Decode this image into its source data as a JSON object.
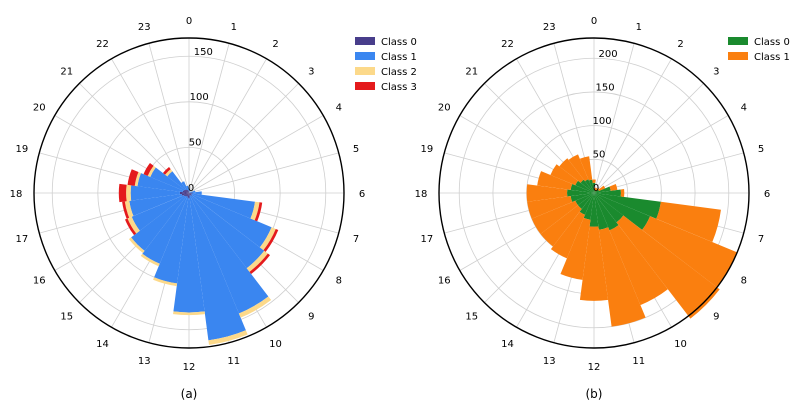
{
  "chart_data": [
    {
      "type": "polar-bar-stacked",
      "panel_label": "(a)",
      "angular_ticks": [
        "0",
        "1",
        "2",
        "3",
        "4",
        "5",
        "6",
        "7",
        "8",
        "9",
        "10",
        "11",
        "12",
        "13",
        "14",
        "15",
        "16",
        "17",
        "18",
        "19",
        "20",
        "21",
        "22",
        "23"
      ],
      "radial_ticks": [
        "0",
        "50",
        "100",
        "150"
      ],
      "rmax": 170,
      "angular_direction": "clockwise",
      "zero_location": "top",
      "grid": true,
      "legend_position": "top-right",
      "series": [
        {
          "name": "Class 0",
          "color": "#483d8b",
          "values": [
            2,
            1,
            0,
            0,
            1,
            1,
            4,
            3,
            3,
            4,
            3,
            3,
            6,
            5,
            4,
            5,
            6,
            8,
            10,
            7,
            6,
            5,
            4,
            3
          ]
        },
        {
          "name": "Class 1",
          "color": "#3a86f0",
          "values": [
            4,
            2,
            1,
            1,
            2,
            6,
            10,
            70,
            95,
            100,
            140,
            160,
            125,
            95,
            80,
            75,
            62,
            58,
            54,
            50,
            40,
            25,
            10,
            5
          ]
        },
        {
          "name": "Class 2",
          "color": "#fcd98a",
          "values": [
            0,
            0,
            0,
            0,
            0,
            0,
            0,
            5,
            5,
            5,
            5,
            5,
            3,
            3,
            3,
            3,
            5,
            5,
            5,
            3,
            3,
            3,
            0,
            0
          ]
        },
        {
          "name": "Class 3",
          "color": "#e41a1c",
          "values": [
            0,
            0,
            0,
            0,
            0,
            0,
            0,
            3,
            3,
            3,
            0,
            0,
            0,
            0,
            0,
            0,
            3,
            3,
            8,
            8,
            5,
            3,
            0,
            0
          ]
        }
      ]
    },
    {
      "type": "polar-bar-stacked",
      "panel_label": "(b)",
      "angular_ticks": [
        "0",
        "1",
        "2",
        "3",
        "4",
        "5",
        "6",
        "7",
        "8",
        "9",
        "10",
        "11",
        "12",
        "13",
        "14",
        "15",
        "16",
        "17",
        "18",
        "19",
        "20",
        "21",
        "22",
        "23"
      ],
      "radial_ticks": [
        "0",
        "50",
        "100",
        "150",
        "200"
      ],
      "rmax": 230,
      "angular_direction": "clockwise",
      "zero_location": "top",
      "grid": true,
      "legend_position": "top-right",
      "series": [
        {
          "name": "Class 0",
          "color": "#1a8a2e",
          "values": [
            15,
            5,
            3,
            5,
            8,
            25,
            40,
            100,
            90,
            55,
            60,
            55,
            50,
            40,
            35,
            30,
            30,
            35,
            40,
            35,
            30,
            25,
            22,
            20
          ]
        },
        {
          "name": "Class 1",
          "color": "#fa7f0f",
          "values": [
            5,
            3,
            5,
            5,
            10,
            10,
            5,
            90,
            140,
            180,
            120,
            145,
            110,
            90,
            70,
            70,
            70,
            65,
            60,
            50,
            40,
            40,
            40,
            35
          ]
        }
      ]
    }
  ]
}
